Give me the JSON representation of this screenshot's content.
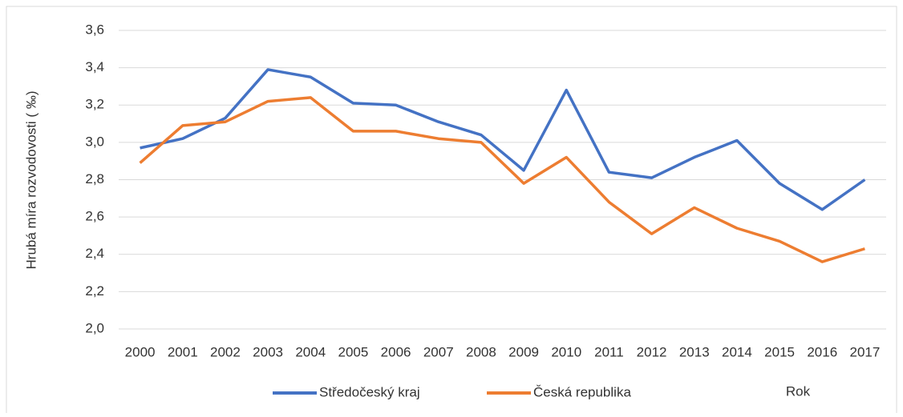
{
  "chart_data": {
    "type": "line",
    "y_label": "Hrubá míra rozvodovosti ( ‰)",
    "x_label": "Rok",
    "categories": [
      "2000",
      "2001",
      "2002",
      "2003",
      "2004",
      "2005",
      "2006",
      "2007",
      "2008",
      "2009",
      "2010",
      "2011",
      "2012",
      "2013",
      "2014",
      "2015",
      "2016",
      "2017"
    ],
    "series": [
      {
        "name": "Středočeský kraj",
        "color": "#4472c4",
        "values": [
          2.97,
          3.02,
          3.13,
          3.39,
          3.35,
          3.21,
          3.2,
          3.11,
          3.04,
          2.85,
          3.28,
          2.84,
          2.81,
          2.92,
          3.01,
          2.78,
          2.64,
          2.8
        ]
      },
      {
        "name": "Česká republika",
        "color": "#ed7d31",
        "values": [
          2.89,
          3.09,
          3.11,
          3.22,
          3.24,
          3.06,
          3.06,
          3.02,
          3.0,
          2.78,
          2.92,
          2.68,
          2.51,
          2.65,
          2.54,
          2.47,
          2.36,
          2.43
        ]
      }
    ],
    "ylim": [
      2.0,
      3.6
    ],
    "yticks": [
      {
        "value": 2.0,
        "label": "2,0"
      },
      {
        "value": 2.2,
        "label": "2,2"
      },
      {
        "value": 2.4,
        "label": "2,4"
      },
      {
        "value": 2.6,
        "label": "2,6"
      },
      {
        "value": 2.8,
        "label": "2,8"
      },
      {
        "value": 3.0,
        "label": "3,0"
      },
      {
        "value": 3.2,
        "label": "3,2"
      },
      {
        "value": 3.4,
        "label": "3,4"
      },
      {
        "value": 3.6,
        "label": "3,6"
      }
    ],
    "grid": true
  }
}
